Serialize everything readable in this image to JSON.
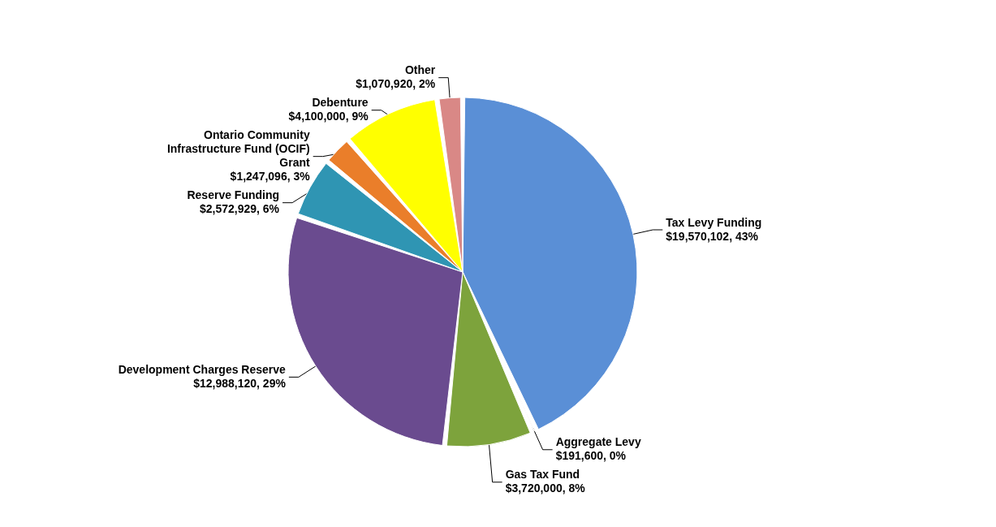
{
  "chart_data": {
    "type": "pie",
    "categories": [
      "Tax Levy Funding",
      "Aggregate Levy ",
      "Gas Tax Fund",
      "Development Charges Reserve",
      "Reserve Funding",
      "Ontario Community Infrastructure Fund (OCIF) Grant",
      "Debenture",
      "Other"
    ],
    "values": [
      19570102,
      191600,
      3720000,
      12988120,
      2572929,
      1247096,
      4100000,
      1070920
    ],
    "colors": [
      "#5a8fd6",
      "#a53a2c",
      "#7da33c",
      "#6a4b8f",
      "#2f95b3",
      "#ea7e2a",
      "#ffff00",
      "#d98886"
    ],
    "value_labels": [
      "$19,570,102, 43%",
      "$191,600, 0%",
      "$3,720,000, 8%",
      "$12,988,120, 29%",
      "$2,572,929, 6%",
      "$1,247,096, 3%",
      "$4,100,000, 9%",
      "$1,070,920, 2%"
    ]
  }
}
